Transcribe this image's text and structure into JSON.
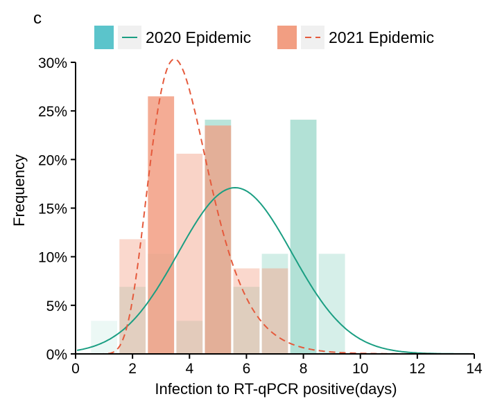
{
  "chart_data": {
    "type": "bar",
    "panel_label": "c",
    "xlabel": "Infection to RT-qPCR positive(days)",
    "ylabel": "Frequency",
    "xlim": [
      0,
      14
    ],
    "ylim": [
      0,
      30
    ],
    "x_ticks": [
      0,
      2,
      4,
      6,
      8,
      10,
      12,
      14
    ],
    "y_ticks": [
      0,
      5,
      10,
      15,
      20,
      25,
      30
    ],
    "y_tick_format": "%",
    "colors": {
      "s2020": "#7fcdbb",
      "s2020_legend": "#5bc4cb",
      "s2020_curve": "#1a9e82",
      "s2021": "#f29e82",
      "s2021_curve": "#e55a3c",
      "legend_pad": "#f0f0f0"
    },
    "series": [
      {
        "name": "2020 Epidemic",
        "key": "s2020",
        "x": [
          1,
          2,
          3,
          4,
          5,
          6,
          7,
          8,
          9
        ],
        "values": [
          3.4,
          6.9,
          10.3,
          3.4,
          24.1,
          6.9,
          10.3,
          24.1,
          10.3
        ],
        "opacity": [
          0.15,
          0.3,
          0.35,
          0.3,
          0.55,
          0.35,
          0.35,
          0.6,
          0.32
        ],
        "curve": {
          "kind": "normal",
          "mean": 5.6,
          "sd": 2.0,
          "peak": 17.1,
          "style": "solid"
        }
      },
      {
        "name": "2021 Epidemic",
        "key": "s2021",
        "x": [
          2,
          3,
          4,
          5,
          6,
          7
        ],
        "values": [
          11.8,
          26.5,
          20.6,
          23.5,
          8.8,
          8.8
        ],
        "opacity": [
          0.4,
          0.85,
          0.45,
          0.75,
          0.4,
          0.45
        ],
        "curve": {
          "kind": "lognormal",
          "mode": 3.8,
          "sigma": 0.3,
          "peak": 29.0,
          "style": "dashed"
        }
      }
    ],
    "legend": {
      "position": "top",
      "entries": [
        "2020 Epidemic",
        "2021 Epidemic"
      ]
    }
  }
}
